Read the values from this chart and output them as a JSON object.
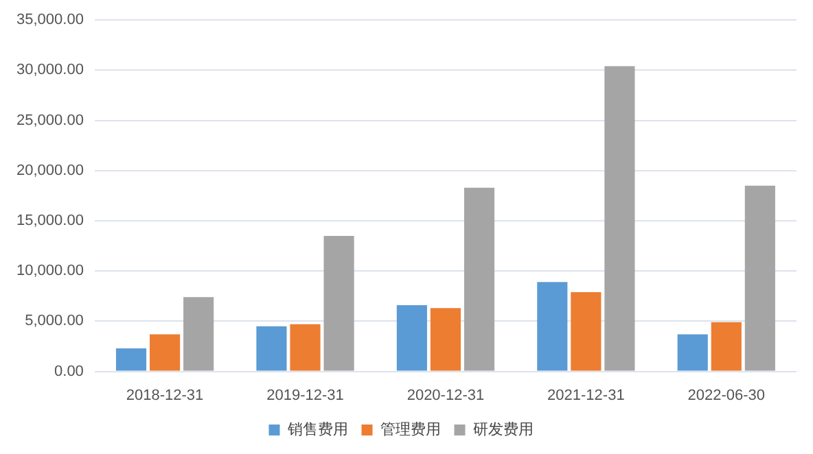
{
  "chart_data": {
    "type": "bar",
    "categories": [
      "2018-12-31",
      "2019-12-31",
      "2020-12-31",
      "2021-12-31",
      "2022-06-30"
    ],
    "series": [
      {
        "name": "销售费用",
        "color": "#5b9bd5",
        "values": [
          2300,
          4500,
          6600,
          8900,
          3700
        ]
      },
      {
        "name": "管理费用",
        "color": "#ed7d31",
        "values": [
          3700,
          4700,
          6300,
          7900,
          4900
        ]
      },
      {
        "name": "研发费用",
        "color": "#a5a5a5",
        "values": [
          7400,
          13500,
          18300,
          30400,
          18500
        ]
      }
    ],
    "ylim": [
      0,
      35000
    ],
    "yticks": [
      {
        "value": 0,
        "label": "0.00"
      },
      {
        "value": 5000,
        "label": "5,000.00"
      },
      {
        "value": 10000,
        "label": "10,000.00"
      },
      {
        "value": 15000,
        "label": "15,000.00"
      },
      {
        "value": 20000,
        "label": "20,000.00"
      },
      {
        "value": 25000,
        "label": "25,000.00"
      },
      {
        "value": 30000,
        "label": "30,000.00"
      },
      {
        "value": 35000,
        "label": "35,000.00"
      }
    ],
    "grid": "y",
    "legend": "bottom"
  }
}
